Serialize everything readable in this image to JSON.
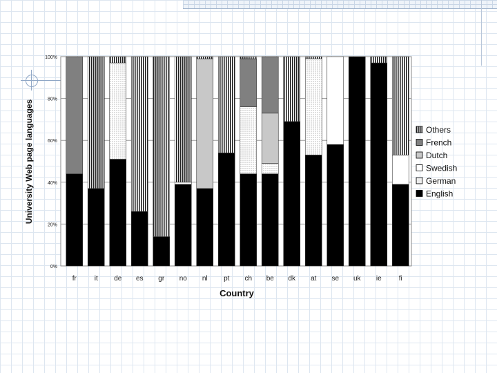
{
  "chart_data": {
    "type": "bar",
    "stacked": true,
    "xlabel": "Country",
    "ylabel": "University Web page languages",
    "categories": [
      "fr",
      "it",
      "de",
      "es",
      "gr",
      "no",
      "nl",
      "pt",
      "ch",
      "be",
      "dk",
      "at",
      "se",
      "uk",
      "ie",
      "fi"
    ],
    "ylim": [
      0,
      100
    ],
    "yticks": [
      0,
      20,
      40,
      60,
      80,
      100
    ],
    "ytick_labels": [
      "0%",
      "20%",
      "40%",
      "60%",
      "80%",
      "100%"
    ],
    "grid": "horizontal",
    "legend_position": "right",
    "series": [
      {
        "name": "English",
        "values": [
          44,
          37,
          51,
          26,
          14,
          39,
          37,
          54,
          44,
          44,
          69,
          53,
          58,
          100,
          97,
          39
        ],
        "color": "#000000",
        "pattern": "solid"
      },
      {
        "name": "German",
        "values": [
          0,
          0,
          46,
          0,
          0,
          0,
          0,
          0,
          32,
          5,
          0,
          46,
          0,
          0,
          0,
          0
        ],
        "color": "#ffffff",
        "pattern": "dots"
      },
      {
        "name": "Swedish",
        "values": [
          0,
          0,
          0,
          0,
          0,
          1,
          0,
          0,
          0,
          0,
          0,
          0,
          42,
          0,
          0,
          14
        ],
        "color": "#ffffff",
        "pattern": "white"
      },
      {
        "name": "Dutch",
        "values": [
          0,
          0,
          0,
          0,
          0,
          0,
          62,
          0,
          0,
          24,
          0,
          0,
          0,
          0,
          0,
          0
        ],
        "color": "#c8c8c8",
        "pattern": "solid"
      },
      {
        "name": "French",
        "values": [
          56,
          0,
          0,
          0,
          0,
          0,
          0,
          0,
          23,
          27,
          0,
          0,
          0,
          0,
          0,
          0
        ],
        "color": "#808080",
        "pattern": "solid"
      },
      {
        "name": "Others",
        "values": [
          0,
          63,
          3,
          74,
          86,
          60,
          1,
          46,
          1,
          0,
          31,
          1,
          0,
          0,
          3,
          47
        ],
        "color": "#555555",
        "pattern": "vlines"
      }
    ]
  }
}
